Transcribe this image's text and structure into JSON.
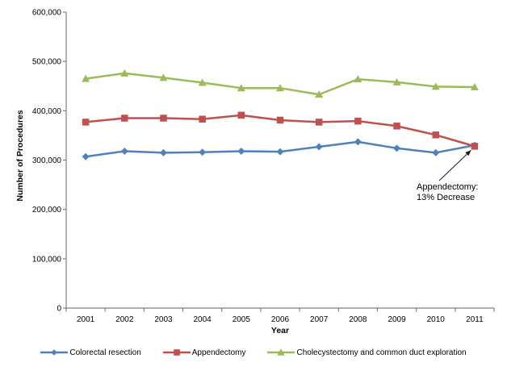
{
  "chart_data": {
    "type": "line",
    "title": "",
    "xlabel": "Year",
    "ylabel": "Number of Procedures",
    "ylim": [
      0,
      600000
    ],
    "ytick_step": 100000,
    "ytick_labels": [
      "0",
      "100,000",
      "200,000",
      "300,000",
      "400,000",
      "500,000",
      "600,000"
    ],
    "grid": false,
    "legend_position": "bottom",
    "categories": [
      "2001",
      "2002",
      "2003",
      "2004",
      "2005",
      "2006",
      "2007",
      "2008",
      "2009",
      "2010",
      "2011"
    ],
    "series": [
      {
        "name": "Colorectal resection",
        "marker": "diamond",
        "color": "#4F81BD",
        "values": [
          307000,
          318000,
          315000,
          316000,
          318000,
          317000,
          327000,
          337000,
          324000,
          315000,
          330000
        ]
      },
      {
        "name": "Appendectomy",
        "marker": "square",
        "color": "#C0504D",
        "values": [
          377000,
          385000,
          385000,
          383000,
          391000,
          381000,
          377000,
          379000,
          369000,
          351000,
          328000
        ]
      },
      {
        "name": "Cholecystectomy and common duct exploration",
        "marker": "triangle",
        "color": "#9BBB59",
        "values": [
          465000,
          476000,
          467000,
          457000,
          446000,
          446000,
          433000,
          464000,
          458000,
          449000,
          448000
        ]
      }
    ],
    "annotation": {
      "line1": "Appendectomy:",
      "line2": "13% Decrease",
      "target_series": "Appendectomy",
      "target_category": "2011"
    }
  },
  "colors": {
    "axis": "#808080",
    "text": "#000000",
    "annotation_arrow": "#1a1a1a"
  }
}
